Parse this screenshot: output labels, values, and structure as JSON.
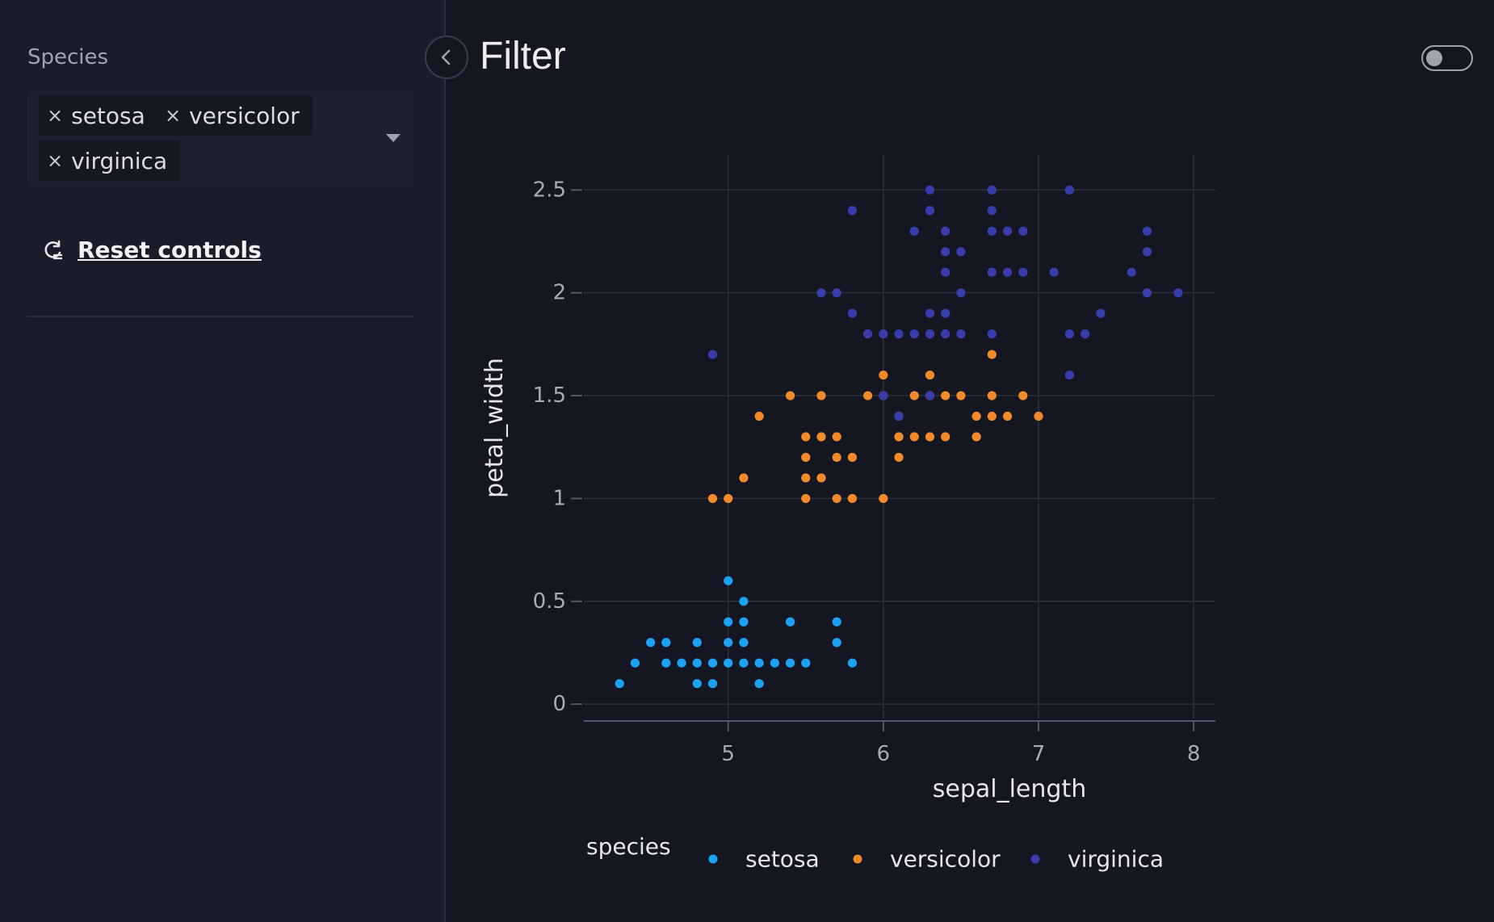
{
  "sidebar": {
    "species_label": "Species",
    "chips": [
      {
        "label": "setosa",
        "remove": "×"
      },
      {
        "label": "versicolor",
        "remove": "×"
      },
      {
        "label": "virginica",
        "remove": "×"
      }
    ],
    "reset_label": "Reset controls"
  },
  "header": {
    "title": "Filter",
    "toggle_on": false
  },
  "colors": {
    "setosa": "#1ba2f2",
    "versicolor": "#f28a2a",
    "virginica": "#383dab",
    "grid": "#2d303b",
    "axis_text": "#a9abb4"
  },
  "chart_data": {
    "type": "scatter",
    "xlabel": "sepal_length",
    "ylabel": "petal_width",
    "xlim": [
      4.07,
      8.14
    ],
    "ylim": [
      -0.07,
      2.67
    ],
    "x_ticks": [
      5,
      6,
      7,
      8
    ],
    "y_ticks": [
      0,
      0.5,
      1,
      1.5,
      2,
      2.5
    ],
    "y_tick_labels": [
      "0",
      "0.5",
      "1",
      "1.5",
      "2",
      "2.5"
    ],
    "legend_title": "species",
    "legend_position": "bottom",
    "grid": true,
    "series": [
      {
        "name": "setosa",
        "color": "#1ba2f2",
        "points": [
          [
            4.3,
            0.1
          ],
          [
            4.4,
            0.2
          ],
          [
            4.5,
            0.3
          ],
          [
            4.6,
            0.3
          ],
          [
            4.6,
            0.2
          ],
          [
            4.7,
            0.2
          ],
          [
            4.8,
            0.3
          ],
          [
            4.8,
            0.2
          ],
          [
            4.8,
            0.1
          ],
          [
            4.9,
            0.2
          ],
          [
            4.9,
            0.1
          ],
          [
            5.0,
            0.6
          ],
          [
            5.0,
            0.4
          ],
          [
            5.0,
            0.3
          ],
          [
            5.0,
            0.2
          ],
          [
            5.1,
            0.5
          ],
          [
            5.1,
            0.4
          ],
          [
            5.1,
            0.3
          ],
          [
            5.1,
            0.2
          ],
          [
            5.2,
            0.2
          ],
          [
            5.2,
            0.1
          ],
          [
            5.3,
            0.2
          ],
          [
            5.4,
            0.4
          ],
          [
            5.4,
            0.2
          ],
          [
            5.5,
            0.2
          ],
          [
            5.7,
            0.4
          ],
          [
            5.7,
            0.3
          ],
          [
            5.8,
            0.2
          ]
        ]
      },
      {
        "name": "versicolor",
        "color": "#f28a2a",
        "points": [
          [
            4.9,
            1.0
          ],
          [
            5.0,
            1.0
          ],
          [
            5.1,
            1.1
          ],
          [
            5.2,
            1.4
          ],
          [
            5.4,
            1.5
          ],
          [
            5.5,
            1.3
          ],
          [
            5.5,
            1.2
          ],
          [
            5.5,
            1.1
          ],
          [
            5.5,
            1.0
          ],
          [
            5.6,
            1.5
          ],
          [
            5.6,
            1.3
          ],
          [
            5.6,
            1.1
          ],
          [
            5.7,
            1.3
          ],
          [
            5.7,
            1.2
          ],
          [
            5.7,
            1.0
          ],
          [
            5.8,
            1.2
          ],
          [
            5.8,
            1.0
          ],
          [
            5.9,
            1.5
          ],
          [
            6.0,
            1.6
          ],
          [
            6.0,
            1.5
          ],
          [
            6.0,
            1.0
          ],
          [
            6.1,
            1.3
          ],
          [
            6.1,
            1.2
          ],
          [
            6.1,
            1.4
          ],
          [
            6.2,
            1.5
          ],
          [
            6.2,
            1.3
          ],
          [
            6.3,
            1.6
          ],
          [
            6.3,
            1.5
          ],
          [
            6.3,
            1.3
          ],
          [
            6.4,
            1.5
          ],
          [
            6.4,
            1.3
          ],
          [
            6.5,
            1.5
          ],
          [
            6.6,
            1.4
          ],
          [
            6.6,
            1.3
          ],
          [
            6.7,
            1.7
          ],
          [
            6.7,
            1.5
          ],
          [
            6.7,
            1.4
          ],
          [
            6.8,
            1.4
          ],
          [
            6.9,
            1.5
          ],
          [
            7.0,
            1.4
          ]
        ]
      },
      {
        "name": "virginica",
        "color": "#383dab",
        "points": [
          [
            4.9,
            1.7
          ],
          [
            5.6,
            2.0
          ],
          [
            5.7,
            2.0
          ],
          [
            5.8,
            2.4
          ],
          [
            5.8,
            1.9
          ],
          [
            5.9,
            1.8
          ],
          [
            6.0,
            1.8
          ],
          [
            6.0,
            1.5
          ],
          [
            6.1,
            1.8
          ],
          [
            6.1,
            1.4
          ],
          [
            6.2,
            2.3
          ],
          [
            6.2,
            1.8
          ],
          [
            6.3,
            2.5
          ],
          [
            6.3,
            2.4
          ],
          [
            6.3,
            1.9
          ],
          [
            6.3,
            1.8
          ],
          [
            6.3,
            1.5
          ],
          [
            6.4,
            2.3
          ],
          [
            6.4,
            2.2
          ],
          [
            6.4,
            2.1
          ],
          [
            6.4,
            1.9
          ],
          [
            6.4,
            1.8
          ],
          [
            6.5,
            2.2
          ],
          [
            6.5,
            2.0
          ],
          [
            6.5,
            1.8
          ],
          [
            6.7,
            2.5
          ],
          [
            6.7,
            2.4
          ],
          [
            6.7,
            2.3
          ],
          [
            6.7,
            2.1
          ],
          [
            6.7,
            1.8
          ],
          [
            6.8,
            2.3
          ],
          [
            6.8,
            2.1
          ],
          [
            6.9,
            2.3
          ],
          [
            6.9,
            2.1
          ],
          [
            7.1,
            2.1
          ],
          [
            7.2,
            2.5
          ],
          [
            7.2,
            1.8
          ],
          [
            7.2,
            1.6
          ],
          [
            7.3,
            1.8
          ],
          [
            7.4,
            1.9
          ],
          [
            7.6,
            2.1
          ],
          [
            7.7,
            2.3
          ],
          [
            7.7,
            2.2
          ],
          [
            7.7,
            2.0
          ],
          [
            7.9,
            2.0
          ]
        ]
      }
    ]
  }
}
